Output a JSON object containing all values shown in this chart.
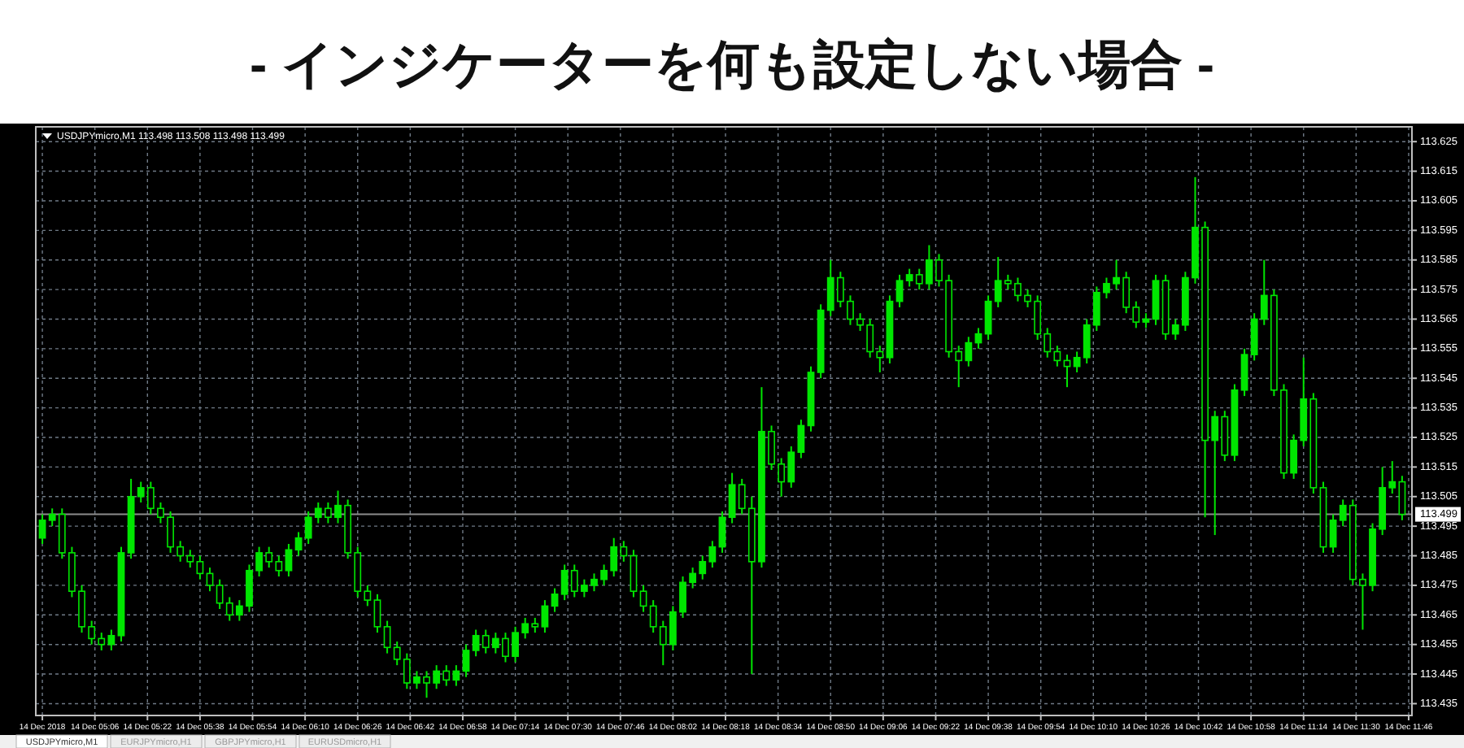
{
  "chart_data": {
    "type": "candlestick",
    "title": "- インジケーターを何も設定しない場合 -",
    "subtitle": "USDJPYmicro,M1  113.498 113.508 113.498 113.499",
    "color": "#00e600",
    "grid": true,
    "xlim": [
      "2018-12-14T04:48",
      "2018-12-14T11:47"
    ],
    "ylim": [
      113.431,
      113.63
    ],
    "yticks": [
      113.625,
      113.615,
      113.605,
      113.595,
      113.585,
      113.575,
      113.565,
      113.555,
      113.545,
      113.535,
      113.525,
      113.515,
      113.505,
      113.495,
      113.485,
      113.475,
      113.465,
      113.455,
      113.445,
      113.435
    ],
    "xticks": [
      {
        "value": "2018-12-14T04:50",
        "label": "14 Dec 2018"
      },
      {
        "value": "2018-12-14T05:06",
        "label": "14 Dec 05:06"
      },
      {
        "value": "2018-12-14T05:22",
        "label": "14 Dec 05:22"
      },
      {
        "value": "2018-12-14T05:38",
        "label": "14 Dec 05:38"
      },
      {
        "value": "2018-12-14T05:54",
        "label": "14 Dec 05:54"
      },
      {
        "value": "2018-12-14T06:10",
        "label": "14 Dec 06:10"
      },
      {
        "value": "2018-12-14T06:26",
        "label": "14 Dec 06:26"
      },
      {
        "value": "2018-12-14T06:42",
        "label": "14 Dec 06:42"
      },
      {
        "value": "2018-12-14T06:58",
        "label": "14 Dec 06:58"
      },
      {
        "value": "2018-12-14T07:14",
        "label": "14 Dec 07:14"
      },
      {
        "value": "2018-12-14T07:30",
        "label": "14 Dec 07:30"
      },
      {
        "value": "2018-12-14T07:46",
        "label": "14 Dec 07:46"
      },
      {
        "value": "2018-12-14T08:02",
        "label": "14 Dec 08:02"
      },
      {
        "value": "2018-12-14T08:18",
        "label": "14 Dec 08:18"
      },
      {
        "value": "2018-12-14T08:34",
        "label": "14 Dec 08:34"
      },
      {
        "value": "2018-12-14T08:50",
        "label": "14 Dec 08:50"
      },
      {
        "value": "2018-12-14T09:06",
        "label": "14 Dec 09:06"
      },
      {
        "value": "2018-12-14T09:22",
        "label": "14 Dec 09:22"
      },
      {
        "value": "2018-12-14T09:38",
        "label": "14 Dec 09:38"
      },
      {
        "value": "2018-12-14T09:54",
        "label": "14 Dec 09:54"
      },
      {
        "value": "2018-12-14T10:10",
        "label": "14 Dec 10:10"
      },
      {
        "value": "2018-12-14T10:26",
        "label": "14 Dec 10:26"
      },
      {
        "value": "2018-12-14T10:42",
        "label": "14 Dec 10:42"
      },
      {
        "value": "2018-12-14T10:58",
        "label": "14 Dec 10:58"
      },
      {
        "value": "2018-12-14T11:14",
        "label": "14 Dec 11:14"
      },
      {
        "value": "2018-12-14T11:30",
        "label": "14 Dec 11:30"
      },
      {
        "value": "2018-12-14T11:46",
        "label": "14 Dec 11:46"
      }
    ],
    "ref_lines": [
      {
        "axis": "y",
        "value": 113.499,
        "label": "113.499",
        "color": "#8c8c8c"
      }
    ],
    "annotations": [
      "USDJPYmicro,M1",
      "EURJPYmicro,H1",
      "GBPJPYmicro,H1",
      "EURUSDmicro,H1"
    ],
    "x": [
      "2018-12-14T04:50",
      "2018-12-14T04:53",
      "2018-12-14T04:56",
      "2018-12-14T04:59",
      "2018-12-14T05:02",
      "2018-12-14T05:05",
      "2018-12-14T05:08",
      "2018-12-14T05:11",
      "2018-12-14T05:14",
      "2018-12-14T05:17",
      "2018-12-14T05:20",
      "2018-12-14T05:23",
      "2018-12-14T05:26",
      "2018-12-14T05:29",
      "2018-12-14T05:32",
      "2018-12-14T05:35",
      "2018-12-14T05:38",
      "2018-12-14T05:41",
      "2018-12-14T05:44",
      "2018-12-14T05:47",
      "2018-12-14T05:50",
      "2018-12-14T05:53",
      "2018-12-14T05:56",
      "2018-12-14T05:59",
      "2018-12-14T06:02",
      "2018-12-14T06:05",
      "2018-12-14T06:08",
      "2018-12-14T06:11",
      "2018-12-14T06:14",
      "2018-12-14T06:17",
      "2018-12-14T06:20",
      "2018-12-14T06:23",
      "2018-12-14T06:26",
      "2018-12-14T06:29",
      "2018-12-14T06:32",
      "2018-12-14T06:35",
      "2018-12-14T06:38",
      "2018-12-14T06:41",
      "2018-12-14T06:44",
      "2018-12-14T06:47",
      "2018-12-14T06:50",
      "2018-12-14T06:53",
      "2018-12-14T06:56",
      "2018-12-14T06:59",
      "2018-12-14T07:02",
      "2018-12-14T07:05",
      "2018-12-14T07:08",
      "2018-12-14T07:11",
      "2018-12-14T07:14",
      "2018-12-14T07:17",
      "2018-12-14T07:20",
      "2018-12-14T07:23",
      "2018-12-14T07:26",
      "2018-12-14T07:29",
      "2018-12-14T07:32",
      "2018-12-14T07:35",
      "2018-12-14T07:38",
      "2018-12-14T07:41",
      "2018-12-14T07:44",
      "2018-12-14T07:47",
      "2018-12-14T07:50",
      "2018-12-14T07:53",
      "2018-12-14T07:56",
      "2018-12-14T07:59",
      "2018-12-14T08:02",
      "2018-12-14T08:05",
      "2018-12-14T08:08",
      "2018-12-14T08:11",
      "2018-12-14T08:14",
      "2018-12-14T08:17",
      "2018-12-14T08:20",
      "2018-12-14T08:23",
      "2018-12-14T08:26",
      "2018-12-14T08:29",
      "2018-12-14T08:32",
      "2018-12-14T08:35",
      "2018-12-14T08:38",
      "2018-12-14T08:41",
      "2018-12-14T08:44",
      "2018-12-14T08:47",
      "2018-12-14T08:50",
      "2018-12-14T08:53",
      "2018-12-14T08:56",
      "2018-12-14T08:59",
      "2018-12-14T09:02",
      "2018-12-14T09:05",
      "2018-12-14T09:08",
      "2018-12-14T09:11",
      "2018-12-14T09:14",
      "2018-12-14T09:17",
      "2018-12-14T09:20",
      "2018-12-14T09:23",
      "2018-12-14T09:26",
      "2018-12-14T09:29",
      "2018-12-14T09:32",
      "2018-12-14T09:35",
      "2018-12-14T09:38",
      "2018-12-14T09:41",
      "2018-12-14T09:44",
      "2018-12-14T09:47",
      "2018-12-14T09:50",
      "2018-12-14T09:53",
      "2018-12-14T09:56",
      "2018-12-14T09:59",
      "2018-12-14T10:02",
      "2018-12-14T10:05",
      "2018-12-14T10:08",
      "2018-12-14T10:11",
      "2018-12-14T10:14",
      "2018-12-14T10:17",
      "2018-12-14T10:20",
      "2018-12-14T10:23",
      "2018-12-14T10:26",
      "2018-12-14T10:29",
      "2018-12-14T10:32",
      "2018-12-14T10:35",
      "2018-12-14T10:38",
      "2018-12-14T10:41",
      "2018-12-14T10:44",
      "2018-12-14T10:47",
      "2018-12-14T10:50",
      "2018-12-14T10:53",
      "2018-12-14T10:56",
      "2018-12-14T10:59",
      "2018-12-14T11:02",
      "2018-12-14T11:05",
      "2018-12-14T11:08",
      "2018-12-14T11:11",
      "2018-12-14T11:14",
      "2018-12-14T11:17",
      "2018-12-14T11:20",
      "2018-12-14T11:23",
      "2018-12-14T11:26",
      "2018-12-14T11:29",
      "2018-12-14T11:32",
      "2018-12-14T11:35",
      "2018-12-14T11:38",
      "2018-12-14T11:41",
      "2018-12-14T11:44"
    ],
    "ohlc": [
      [
        113.491,
        113.499,
        113.489,
        113.497
      ],
      [
        113.497,
        113.501,
        113.495,
        113.499
      ],
      [
        113.499,
        113.501,
        113.484,
        113.486
      ],
      [
        113.486,
        113.488,
        113.471,
        113.473
      ],
      [
        113.473,
        113.475,
        113.459,
        113.461
      ],
      [
        113.461,
        113.463,
        113.455,
        113.457
      ],
      [
        113.457,
        113.459,
        113.453,
        113.455
      ],
      [
        113.455,
        113.46,
        113.453,
        113.458
      ],
      [
        113.458,
        113.488,
        113.456,
        113.486
      ],
      [
        113.486,
        113.511,
        113.484,
        113.505
      ],
      [
        113.505,
        113.51,
        113.503,
        113.508
      ],
      [
        113.508,
        113.51,
        113.499,
        113.501
      ],
      [
        113.501,
        113.503,
        113.496,
        113.498
      ],
      [
        113.498,
        113.5,
        113.486,
        113.488
      ],
      [
        113.488,
        113.49,
        113.483,
        113.485
      ],
      [
        113.485,
        113.487,
        113.481,
        113.483
      ],
      [
        113.483,
        113.485,
        113.477,
        113.479
      ],
      [
        113.479,
        113.481,
        113.473,
        113.475
      ],
      [
        113.475,
        113.477,
        113.467,
        113.469
      ],
      [
        113.469,
        113.471,
        113.463,
        113.465
      ],
      [
        113.465,
        113.47,
        113.463,
        113.468
      ],
      [
        113.468,
        113.482,
        113.466,
        113.48
      ],
      [
        113.48,
        113.488,
        113.478,
        113.486
      ],
      [
        113.486,
        113.488,
        113.481,
        113.483
      ],
      [
        113.483,
        113.485,
        113.478,
        113.48
      ],
      [
        113.48,
        113.489,
        113.478,
        113.487
      ],
      [
        113.487,
        113.493,
        113.485,
        113.491
      ],
      [
        113.491,
        113.5,
        113.489,
        113.498
      ],
      [
        113.498,
        113.503,
        113.496,
        113.501
      ],
      [
        113.501,
        113.503,
        113.496,
        113.498
      ],
      [
        113.498,
        113.507,
        113.496,
        113.502
      ],
      [
        113.502,
        113.504,
        113.484,
        113.486
      ],
      [
        113.486,
        113.488,
        113.471,
        113.473
      ],
      [
        113.473,
        113.475,
        113.468,
        113.47
      ],
      [
        113.47,
        113.472,
        113.459,
        113.461
      ],
      [
        113.461,
        113.463,
        113.452,
        113.454
      ],
      [
        113.454,
        113.456,
        113.448,
        113.45
      ],
      [
        113.45,
        113.452,
        113.44,
        113.442
      ],
      [
        113.442,
        113.446,
        113.44,
        113.444
      ],
      [
        113.444,
        113.446,
        113.437,
        113.442
      ],
      [
        113.442,
        113.448,
        113.44,
        113.446
      ],
      [
        113.446,
        113.448,
        113.441,
        113.443
      ],
      [
        113.443,
        113.448,
        113.441,
        113.446
      ],
      [
        113.446,
        113.455,
        113.444,
        113.453
      ],
      [
        113.453,
        113.46,
        113.451,
        113.458
      ],
      [
        113.458,
        113.46,
        113.452,
        113.454
      ],
      [
        113.454,
        113.459,
        113.452,
        113.457
      ],
      [
        113.457,
        113.459,
        113.449,
        113.451
      ],
      [
        113.451,
        113.461,
        113.449,
        113.459
      ],
      [
        113.459,
        113.464,
        113.457,
        113.462
      ],
      [
        113.462,
        113.464,
        113.459,
        113.461
      ],
      [
        113.461,
        113.47,
        113.459,
        113.468
      ],
      [
        113.468,
        113.474,
        113.466,
        113.472
      ],
      [
        113.472,
        113.482,
        113.47,
        113.48
      ],
      [
        113.48,
        113.482,
        113.471,
        113.473
      ],
      [
        113.473,
        113.477,
        113.471,
        113.475
      ],
      [
        113.475,
        113.479,
        113.473,
        113.477
      ],
      [
        113.477,
        113.482,
        113.475,
        113.48
      ],
      [
        113.48,
        113.491,
        113.478,
        113.488
      ],
      [
        113.488,
        113.49,
        113.483,
        113.485
      ],
      [
        113.485,
        113.487,
        113.471,
        113.473
      ],
      [
        113.473,
        113.475,
        113.466,
        113.468
      ],
      [
        113.468,
        113.47,
        113.459,
        113.461
      ],
      [
        113.461,
        113.463,
        113.448,
        113.455
      ],
      [
        113.455,
        113.468,
        113.453,
        113.466
      ],
      [
        113.466,
        113.478,
        113.464,
        113.476
      ],
      [
        113.476,
        113.481,
        113.474,
        113.479
      ],
      [
        113.479,
        113.485,
        113.477,
        113.483
      ],
      [
        113.483,
        113.49,
        113.481,
        113.488
      ],
      [
        113.488,
        113.5,
        113.486,
        113.498
      ],
      [
        113.498,
        113.513,
        113.496,
        113.509
      ],
      [
        113.509,
        113.511,
        113.499,
        113.501
      ],
      [
        113.501,
        113.505,
        113.445,
        113.483
      ],
      [
        113.483,
        113.542,
        113.481,
        113.527
      ],
      [
        113.527,
        113.529,
        113.514,
        113.516
      ],
      [
        113.516,
        113.518,
        113.505,
        113.51
      ],
      [
        113.51,
        113.522,
        113.508,
        113.52
      ],
      [
        113.52,
        113.531,
        113.518,
        113.529
      ],
      [
        113.529,
        113.549,
        113.527,
        113.547
      ],
      [
        113.547,
        113.57,
        113.545,
        113.568
      ],
      [
        113.568,
        113.585,
        113.566,
        113.579
      ],
      [
        113.579,
        113.581,
        113.569,
        113.571
      ],
      [
        113.571,
        113.573,
        113.563,
        113.565
      ],
      [
        113.565,
        113.567,
        113.561,
        113.563
      ],
      [
        113.563,
        113.565,
        113.552,
        113.554
      ],
      [
        113.554,
        113.556,
        113.547,
        113.552
      ],
      [
        113.552,
        113.573,
        113.55,
        113.571
      ],
      [
        113.571,
        113.58,
        113.569,
        113.578
      ],
      [
        113.578,
        113.582,
        113.576,
        113.58
      ],
      [
        113.58,
        113.582,
        113.575,
        113.577
      ],
      [
        113.577,
        113.59,
        113.575,
        113.585
      ],
      [
        113.585,
        113.587,
        113.576,
        113.578
      ],
      [
        113.578,
        113.58,
        113.552,
        113.554
      ],
      [
        113.554,
        113.556,
        113.542,
        113.551
      ],
      [
        113.551,
        113.559,
        113.549,
        113.557
      ],
      [
        113.557,
        113.562,
        113.555,
        113.56
      ],
      [
        113.56,
        113.573,
        113.558,
        113.571
      ],
      [
        113.571,
        113.586,
        113.569,
        113.578
      ],
      [
        113.578,
        113.58,
        113.575,
        113.577
      ],
      [
        113.577,
        113.579,
        113.571,
        113.573
      ],
      [
        113.573,
        113.575,
        113.569,
        113.571
      ],
      [
        113.571,
        113.573,
        113.558,
        113.56
      ],
      [
        113.56,
        113.562,
        113.552,
        113.554
      ],
      [
        113.554,
        113.556,
        113.549,
        113.551
      ],
      [
        113.551,
        113.553,
        113.542,
        113.549
      ],
      [
        113.549,
        113.554,
        113.547,
        113.552
      ],
      [
        113.552,
        113.565,
        113.55,
        113.563
      ],
      [
        113.563,
        113.576,
        113.561,
        113.574
      ],
      [
        113.574,
        113.579,
        113.572,
        113.577
      ],
      [
        113.577,
        113.585,
        113.575,
        113.579
      ],
      [
        113.579,
        113.581,
        113.567,
        113.569
      ],
      [
        113.569,
        113.571,
        113.562,
        113.564
      ],
      [
        113.564,
        113.567,
        113.562,
        113.565
      ],
      [
        113.565,
        113.58,
        113.563,
        113.578
      ],
      [
        113.578,
        113.58,
        113.558,
        113.56
      ],
      [
        113.56,
        113.565,
        113.558,
        113.563
      ],
      [
        113.563,
        113.581,
        113.561,
        113.579
      ],
      [
        113.579,
        113.613,
        113.577,
        113.596
      ],
      [
        113.596,
        113.598,
        113.498,
        113.524
      ],
      [
        113.524,
        113.534,
        113.492,
        113.532
      ],
      [
        113.532,
        113.534,
        113.517,
        113.519
      ],
      [
        113.519,
        113.543,
        113.517,
        113.541
      ],
      [
        113.541,
        113.555,
        113.539,
        113.553
      ],
      [
        113.553,
        113.567,
        113.551,
        113.565
      ],
      [
        113.565,
        113.585,
        113.563,
        113.573
      ],
      [
        113.573,
        113.575,
        113.539,
        113.541
      ],
      [
        113.541,
        113.543,
        113.511,
        113.513
      ],
      [
        113.513,
        113.526,
        113.511,
        113.524
      ],
      [
        113.524,
        113.552,
        113.522,
        113.538
      ],
      [
        113.538,
        113.54,
        113.506,
        113.508
      ],
      [
        113.508,
        113.51,
        113.486,
        113.488
      ],
      [
        113.488,
        113.499,
        113.486,
        113.497
      ],
      [
        113.497,
        113.504,
        113.495,
        113.502
      ],
      [
        113.502,
        113.504,
        113.475,
        113.477
      ],
      [
        113.477,
        113.479,
        113.46,
        113.475
      ],
      [
        113.475,
        113.496,
        113.473,
        113.494
      ],
      [
        113.494,
        113.515,
        113.492,
        113.508
      ],
      [
        113.508,
        113.517,
        113.506,
        113.51
      ],
      [
        113.51,
        113.512,
        113.497,
        113.499
      ]
    ]
  }
}
